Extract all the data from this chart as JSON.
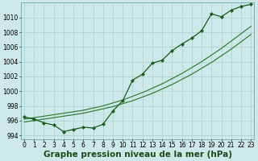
{
  "x": [
    0,
    1,
    2,
    3,
    4,
    5,
    6,
    7,
    8,
    9,
    10,
    11,
    12,
    13,
    14,
    15,
    16,
    17,
    18,
    19,
    20,
    21,
    22,
    23
  ],
  "pressure_actual": [
    996.5,
    996.2,
    995.7,
    995.4,
    994.5,
    994.8,
    995.1,
    995.0,
    995.5,
    997.3,
    998.7,
    1001.5,
    1002.3,
    1003.8,
    1004.2,
    1005.5,
    1006.4,
    1007.2,
    1008.2,
    1010.5,
    1010.1,
    1011.0,
    1011.5,
    1011.8
  ],
  "pressure_trend1": [
    995.8,
    996.0,
    996.2,
    996.4,
    996.6,
    996.8,
    997.0,
    997.3,
    997.6,
    997.9,
    998.3,
    998.7,
    999.2,
    999.7,
    1000.3,
    1000.9,
    1001.6,
    1002.3,
    1003.1,
    1003.9,
    1004.8,
    1005.7,
    1006.7,
    1007.7
  ],
  "pressure_trend2": [
    996.2,
    996.4,
    996.6,
    996.8,
    997.0,
    997.2,
    997.4,
    997.7,
    998.0,
    998.4,
    998.8,
    999.3,
    999.8,
    1000.4,
    1001.0,
    1001.7,
    1002.4,
    1003.2,
    1004.0,
    1004.9,
    1005.8,
    1006.8,
    1007.8,
    1008.8
  ],
  "bg_color": "#cce8e8",
  "grid_color": "#aacfcf",
  "line_color_actual": "#1a5c1a",
  "line_color_trend": "#2e7d2e",
  "xlabel": "Graphe pression niveau de la mer (hPa)",
  "ylim": [
    993.5,
    1012.0
  ],
  "yticks": [
    994,
    996,
    998,
    1000,
    1002,
    1004,
    1006,
    1008,
    1010
  ],
  "xtick_labels": [
    "0",
    "1",
    "2",
    "3",
    "4",
    "5",
    "6",
    "7",
    "8",
    "9",
    "10",
    "11",
    "12",
    "13",
    "14",
    "15",
    "16",
    "17",
    "18",
    "19",
    "20",
    "21",
    "22",
    "23"
  ],
  "tick_fontsize": 5.5,
  "xlabel_fontsize": 7.5
}
